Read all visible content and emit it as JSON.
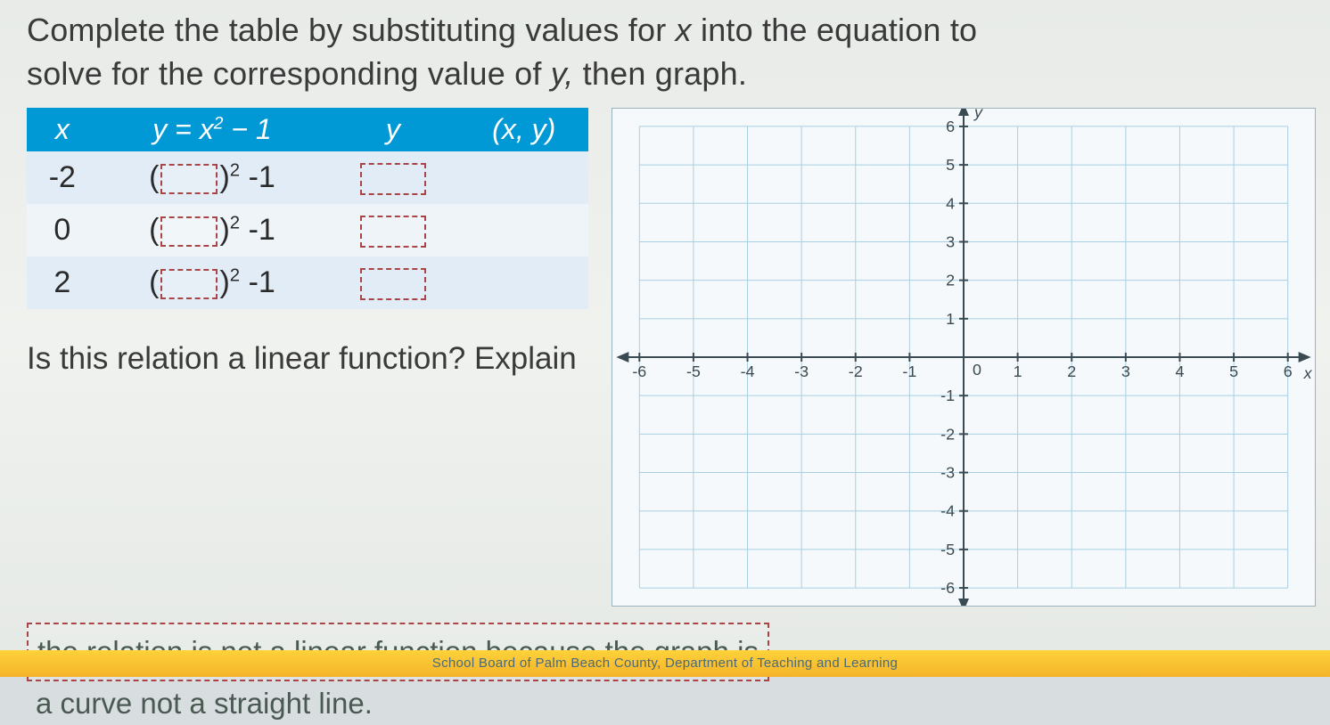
{
  "instruction_line1": "Complete the table by substituting values for ",
  "instruction_x": "x",
  "instruction_mid": " into the equation to",
  "instruction_line2a": "solve for the corresponding value of ",
  "instruction_y": "y,",
  "instruction_line2b": " then graph.",
  "table": {
    "headers": {
      "x": "x",
      "eq": "y = x² − 1",
      "y": "y",
      "xy": "(x, y)"
    },
    "rows": [
      {
        "x": "-2",
        "suffix": "² -1"
      },
      {
        "x": "0",
        "suffix": "² -1"
      },
      {
        "x": "2",
        "suffix": "² -1"
      }
    ],
    "header_bg": "#0099d6",
    "row_a_bg": "#e1ecf6",
    "row_b_bg": "#eef4f8",
    "blank_border": "#a94447"
  },
  "question": "Is this relation a linear function? Explain",
  "answer_line1": "the relation is not a linear function because the graph is",
  "answer_line2": "a curve not a straight line.",
  "graph": {
    "xlim": [
      -6,
      6
    ],
    "ylim": [
      -6,
      6
    ],
    "xticks": [
      -6,
      -5,
      -4,
      -3,
      -2,
      -1,
      0,
      1,
      2,
      3,
      4,
      5,
      6
    ],
    "yticks": [
      -6,
      -5,
      -4,
      -3,
      -2,
      -1,
      1,
      2,
      3,
      4,
      5,
      6
    ],
    "x_label": "x",
    "y_label": "y",
    "grid_color": "#a9cfe2",
    "axis_color": "#3a4a52",
    "tick_font": 18,
    "bg": "#f5f9fb"
  },
  "footer": "School Board of Palm Beach County, Department of Teaching and Learning",
  "colors": {
    "page_bg": "#e8ebe8",
    "text": "#3a3a3a",
    "footer_bg": "#f7c029"
  }
}
